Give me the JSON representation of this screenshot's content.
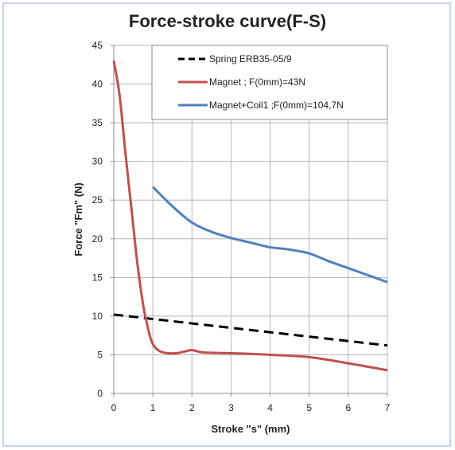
{
  "chart_data": {
    "type": "line",
    "title": "Force-stroke curve(F-S)",
    "xlabel": "Stroke \"s\" (mm)",
    "ylabel": "Force \"Fm\" (N)",
    "xlim": [
      0,
      7
    ],
    "ylim": [
      0,
      45
    ],
    "xticks": [
      0,
      1,
      2,
      3,
      4,
      5,
      6,
      7
    ],
    "yticks": [
      0,
      5,
      10,
      15,
      20,
      25,
      30,
      35,
      40,
      45
    ],
    "grid": true,
    "legend_position": "top-right",
    "series": [
      {
        "name": "Spring ERB35-05/9",
        "style": "dashed",
        "color": "#000000",
        "x": [
          0,
          7
        ],
        "y": [
          10.2,
          6.2
        ]
      },
      {
        "name": "Magnet ; F(0mm)=43N",
        "style": "solid",
        "color": "#c0504d",
        "x": [
          0,
          0.15,
          0.3,
          0.45,
          0.6,
          0.75,
          0.85,
          0.95,
          1.05,
          1.2,
          1.4,
          1.6,
          1.8,
          2.0,
          2.3,
          3.0,
          4.0,
          5.0,
          6.0,
          7.0
        ],
        "y": [
          43,
          38.5,
          31,
          24,
          17,
          11.5,
          9,
          7,
          6,
          5.4,
          5.2,
          5.2,
          5.4,
          5.6,
          5.3,
          5.2,
          5.0,
          4.7,
          3.9,
          3.0
        ]
      },
      {
        "name": "Magnet+Coil1 ;F(0mm)=104,7N",
        "style": "solid",
        "color": "#4f81bd",
        "x": [
          1,
          1.5,
          2,
          2.5,
          3,
          3.5,
          4,
          4.5,
          5,
          5.5,
          6,
          6.5,
          7
        ],
        "y": [
          26.7,
          24.2,
          22.1,
          20.9,
          20.1,
          19.5,
          18.9,
          18.6,
          18.1,
          17.1,
          16.2,
          15.3,
          14.4
        ]
      }
    ]
  }
}
